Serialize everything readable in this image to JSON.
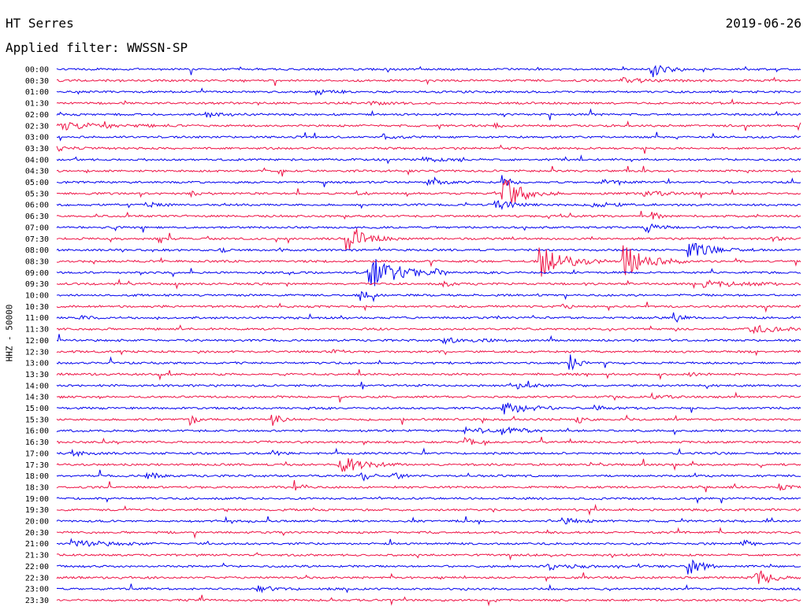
{
  "header": {
    "station": "HT Serres",
    "date": "2019-06-26",
    "filter": "Applied filter: WWSSN-SP"
  },
  "chart_data": {
    "type": "helicorder",
    "channel_label": "HHZ - 50000",
    "colors": {
      "even": "#0000ee",
      "odd": "#ee1144"
    },
    "rows": [
      {
        "time": "00:00",
        "events": [
          {
            "t": 0.8,
            "a": 10,
            "d": 0.015
          }
        ]
      },
      {
        "time": "00:30",
        "events": [
          {
            "t": 0.76,
            "a": 3,
            "d": 0.03
          }
        ]
      },
      {
        "time": "01:00",
        "events": [
          {
            "t": 0.35,
            "a": 3,
            "d": 0.02
          }
        ]
      },
      {
        "time": "01:30",
        "events": [
          {
            "t": 0.42,
            "a": 2,
            "d": 0.02
          }
        ]
      },
      {
        "time": "02:00",
        "events": [
          {
            "t": 0.2,
            "a": 3,
            "d": 0.02
          }
        ]
      },
      {
        "time": "02:30",
        "events": [
          {
            "t": 0.0,
            "a": 5,
            "d": 0.06
          },
          {
            "t": 0.59,
            "a": 2,
            "d": 0.01
          }
        ]
      },
      {
        "time": "03:00",
        "events": [
          {
            "t": 0.44,
            "a": 4,
            "d": 0.01
          }
        ]
      },
      {
        "time": "03:30",
        "events": [
          {
            "t": 0.0,
            "a": 3,
            "d": 0.02
          }
        ]
      },
      {
        "time": "04:00",
        "events": [
          {
            "t": 0.49,
            "a": 3,
            "d": 0.02
          },
          {
            "t": 0.54,
            "a": 3,
            "d": 0.01
          }
        ]
      },
      {
        "time": "04:30",
        "events": []
      },
      {
        "time": "05:00",
        "events": [
          {
            "t": 0.5,
            "a": 3,
            "d": 0.02
          },
          {
            "t": 0.6,
            "a": 8,
            "d": 0.01
          },
          {
            "t": 0.73,
            "a": 4,
            "d": 0.02
          }
        ]
      },
      {
        "time": "05:30",
        "events": [
          {
            "t": 0.6,
            "a": 22,
            "d": 0.025
          },
          {
            "t": 0.79,
            "a": 4,
            "d": 0.03
          },
          {
            "t": 0.4,
            "a": 4,
            "d": 0.01
          },
          {
            "t": 0.18,
            "a": 3,
            "d": 0.01
          }
        ]
      },
      {
        "time": "06:00",
        "events": [
          {
            "t": 0.59,
            "a": 6,
            "d": 0.02
          },
          {
            "t": 0.12,
            "a": 3,
            "d": 0.02
          },
          {
            "t": 0.72,
            "a": 3,
            "d": 0.03
          }
        ]
      },
      {
        "time": "06:30",
        "events": [
          {
            "t": 0.8,
            "a": 5,
            "d": 0.01
          }
        ]
      },
      {
        "time": "07:00",
        "events": [
          {
            "t": 0.79,
            "a": 7,
            "d": 0.015
          }
        ]
      },
      {
        "time": "07:30",
        "events": [
          {
            "t": 0.39,
            "a": 14,
            "d": 0.025
          },
          {
            "t": 0.96,
            "a": 4,
            "d": 0.01
          }
        ]
      },
      {
        "time": "08:00",
        "events": [
          {
            "t": 0.85,
            "a": 10,
            "d": 0.03
          },
          {
            "t": 0.22,
            "a": 3,
            "d": 0.01
          }
        ]
      },
      {
        "time": "08:30",
        "events": [
          {
            "t": 0.65,
            "a": 20,
            "d": 0.03
          },
          {
            "t": 0.76,
            "a": 22,
            "d": 0.03
          }
        ]
      },
      {
        "time": "09:00",
        "events": [
          {
            "t": 0.42,
            "a": 22,
            "d": 0.035
          },
          {
            "t": 0.51,
            "a": 3,
            "d": 0.01
          }
        ]
      },
      {
        "time": "09:30",
        "events": [
          {
            "t": 0.52,
            "a": 3,
            "d": 0.01
          },
          {
            "t": 0.87,
            "a": 4,
            "d": 0.05
          }
        ]
      },
      {
        "time": "10:00",
        "events": [
          {
            "t": 0.41,
            "a": 6,
            "d": 0.01
          }
        ]
      },
      {
        "time": "10:30",
        "events": [
          {
            "t": 0.68,
            "a": 3,
            "d": 0.01
          }
        ]
      },
      {
        "time": "11:00",
        "events": [
          {
            "t": 0.03,
            "a": 5,
            "d": 0.01
          },
          {
            "t": 0.83,
            "a": 6,
            "d": 0.01
          }
        ]
      },
      {
        "time": "11:30",
        "events": [
          {
            "t": 0.93,
            "a": 5,
            "d": 0.04
          }
        ]
      },
      {
        "time": "12:00",
        "events": [
          {
            "t": 0.52,
            "a": 3,
            "d": 0.04
          }
        ]
      },
      {
        "time": "12:30",
        "events": [
          {
            "t": 0.37,
            "a": 4,
            "d": 0.01
          }
        ]
      },
      {
        "time": "13:00",
        "events": [
          {
            "t": 0.69,
            "a": 10,
            "d": 0.01
          }
        ]
      },
      {
        "time": "13:30",
        "events": [
          {
            "t": 0.85,
            "a": 3,
            "d": 0.01
          }
        ]
      },
      {
        "time": "14:00",
        "events": [
          {
            "t": 0.62,
            "a": 3,
            "d": 0.02
          }
        ]
      },
      {
        "time": "14:30",
        "events": [
          {
            "t": 0.8,
            "a": 3,
            "d": 0.02
          }
        ]
      },
      {
        "time": "15:00",
        "events": [
          {
            "t": 0.6,
            "a": 8,
            "d": 0.03
          },
          {
            "t": 0.72,
            "a": 3,
            "d": 0.02
          }
        ]
      },
      {
        "time": "15:30",
        "events": [
          {
            "t": 0.18,
            "a": 6,
            "d": 0.01
          },
          {
            "t": 0.29,
            "a": 7,
            "d": 0.01
          },
          {
            "t": 0.7,
            "a": 5,
            "d": 0.01
          }
        ]
      },
      {
        "time": "16:00",
        "events": [
          {
            "t": 0.55,
            "a": 4,
            "d": 0.03
          },
          {
            "t": 0.6,
            "a": 4,
            "d": 0.02
          }
        ]
      },
      {
        "time": "16:30",
        "events": [
          {
            "t": 0.55,
            "a": 5,
            "d": 0.01
          }
        ]
      },
      {
        "time": "17:00",
        "events": [
          {
            "t": 0.02,
            "a": 3,
            "d": 0.02
          },
          {
            "t": 0.29,
            "a": 3,
            "d": 0.01
          }
        ]
      },
      {
        "time": "17:30",
        "events": [
          {
            "t": 0.38,
            "a": 10,
            "d": 0.03
          }
        ]
      },
      {
        "time": "18:00",
        "events": [
          {
            "t": 0.12,
            "a": 8,
            "d": 0.01
          },
          {
            "t": 0.41,
            "a": 8,
            "d": 0.01
          },
          {
            "t": 0.45,
            "a": 7,
            "d": 0.01
          }
        ]
      },
      {
        "time": "18:30",
        "events": [
          {
            "t": 0.32,
            "a": 8,
            "d": 0.01
          },
          {
            "t": 0.97,
            "a": 5,
            "d": 0.01
          }
        ]
      },
      {
        "time": "19:00",
        "events": []
      },
      {
        "time": "19:30",
        "events": []
      },
      {
        "time": "20:00",
        "events": [
          {
            "t": 0.68,
            "a": 4,
            "d": 0.02
          }
        ]
      },
      {
        "time": "20:30",
        "events": []
      },
      {
        "time": "21:00",
        "events": [
          {
            "t": 0.02,
            "a": 5,
            "d": 0.04
          },
          {
            "t": 0.92,
            "a": 7,
            "d": 0.01
          }
        ]
      },
      {
        "time": "21:30",
        "events": []
      },
      {
        "time": "22:00",
        "events": [
          {
            "t": 0.66,
            "a": 4,
            "d": 0.03
          },
          {
            "t": 0.85,
            "a": 10,
            "d": 0.015
          }
        ]
      },
      {
        "time": "22:30",
        "events": [
          {
            "t": 0.94,
            "a": 12,
            "d": 0.02
          }
        ]
      },
      {
        "time": "23:00",
        "events": [
          {
            "t": 0.27,
            "a": 4,
            "d": 0.02
          }
        ]
      },
      {
        "time": "23:30",
        "events": []
      }
    ]
  }
}
